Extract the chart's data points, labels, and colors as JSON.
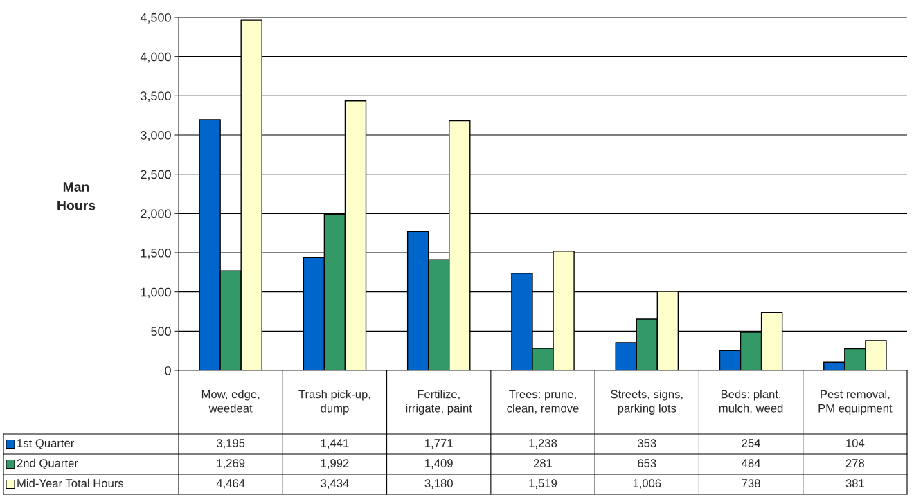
{
  "chart_data": {
    "type": "bar",
    "ylabel": "Man Hours",
    "categories": [
      "Mow, edge, weedeat",
      "Trash pick-up, dump",
      "Fertilize, irrigate, paint",
      "Trees: prune, clean, remove",
      "Streets, signs, parking lots",
      "Beds: plant, mulch, weed",
      "Pest removal, PM equipment"
    ],
    "series": [
      {
        "name": "1st Quarter",
        "color": "#0066cc",
        "values": [
          3195,
          1441,
          1771,
          1238,
          353,
          254,
          104
        ],
        "value_labels": [
          "3,195",
          "1,441",
          "1,771",
          "1,238",
          "353",
          "254",
          "104"
        ]
      },
      {
        "name": "2nd Quarter",
        "color": "#339966",
        "values": [
          1269,
          1992,
          1409,
          281,
          653,
          484,
          278
        ],
        "value_labels": [
          "1,269",
          "1,992",
          "1,409",
          "281",
          "653",
          "484",
          "278"
        ]
      },
      {
        "name": "Mid-Year Total Hours",
        "color": "#ffffcc",
        "values": [
          4464,
          3434,
          3180,
          1519,
          1006,
          738,
          381
        ],
        "value_labels": [
          "4,464",
          "3,434",
          "3,180",
          "1,519",
          "1,006",
          "738",
          "381"
        ]
      }
    ],
    "ylim": [
      0,
      4500
    ],
    "yticks": [
      0,
      500,
      {
        "value": 1000,
        "label": "1,000"
      },
      {
        "value": 1500,
        "label": "1,500"
      },
      {
        "value": 2000,
        "label": "2,000"
      },
      {
        "value": 2500,
        "label": "2,500"
      },
      {
        "value": 3000,
        "label": "3,000"
      },
      {
        "value": 3500,
        "label": "3,500"
      },
      {
        "value": 4000,
        "label": "4,000"
      },
      {
        "value": 4500,
        "label": "4,500"
      }
    ],
    "grid": "y",
    "legend": "bottom"
  }
}
